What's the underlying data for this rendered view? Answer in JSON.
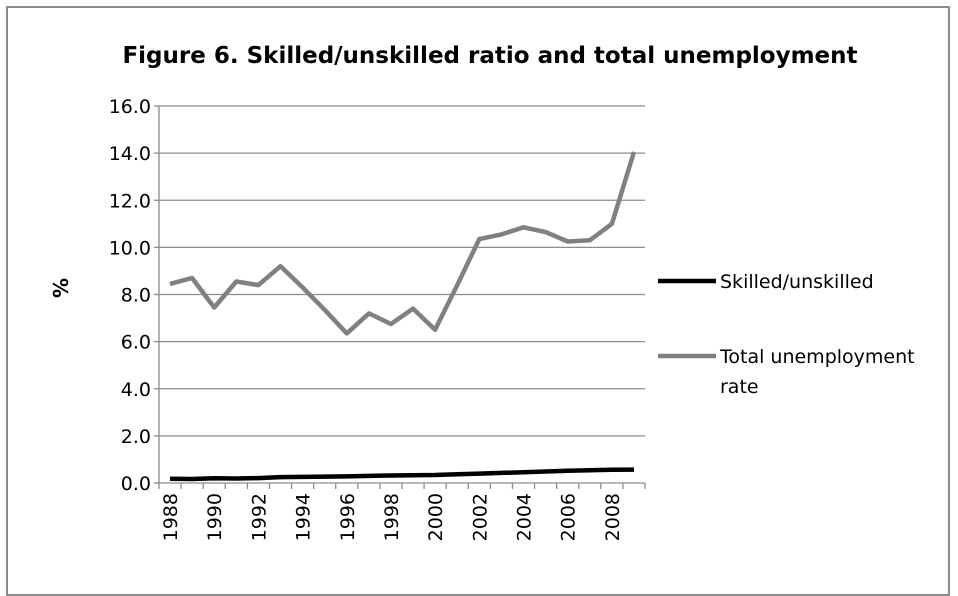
{
  "chart_data": {
    "type": "line",
    "title": "Figure 6. Skilled/unskilled ratio and total unemployment",
    "xlabel": "",
    "ylabel": "%",
    "x": [
      1988,
      1989,
      1990,
      1991,
      1992,
      1993,
      1994,
      1995,
      1996,
      1997,
      1998,
      1999,
      2000,
      2001,
      2002,
      2003,
      2004,
      2005,
      2006,
      2007,
      2008,
      2009
    ],
    "x_tick_labels": [
      "1988",
      "1990",
      "1992",
      "1994",
      "1996",
      "1998",
      "2000",
      "2002",
      "2004",
      "2006",
      "2008"
    ],
    "y_tick_labels": [
      "0.0",
      "2.0",
      "4.0",
      "6.0",
      "8.0",
      "10.0",
      "12.0",
      "14.0",
      "16.0"
    ],
    "ylim": [
      0,
      16
    ],
    "grid": "horizontal",
    "legend_position": "right",
    "series": [
      {
        "name": "Skilled/unskilled",
        "color": "#000000",
        "values": [
          0.18,
          0.17,
          0.2,
          0.19,
          0.21,
          0.25,
          0.26,
          0.27,
          0.28,
          0.3,
          0.32,
          0.33,
          0.34,
          0.37,
          0.4,
          0.43,
          0.46,
          0.49,
          0.52,
          0.54,
          0.56,
          0.57
        ]
      },
      {
        "name": "Total unemployment rate",
        "color": "#808080",
        "values": [
          8.45,
          8.7,
          7.45,
          8.55,
          8.4,
          9.2,
          8.3,
          7.35,
          6.35,
          7.2,
          6.75,
          7.4,
          6.5,
          8.4,
          10.35,
          10.55,
          10.85,
          10.65,
          10.25,
          10.3,
          11.0,
          14.05
        ]
      }
    ],
    "legend_entries": [
      {
        "lines": [
          "Skilled/unskilled"
        ]
      },
      {
        "lines": [
          "Total unemployment",
          "rate"
        ]
      }
    ]
  }
}
